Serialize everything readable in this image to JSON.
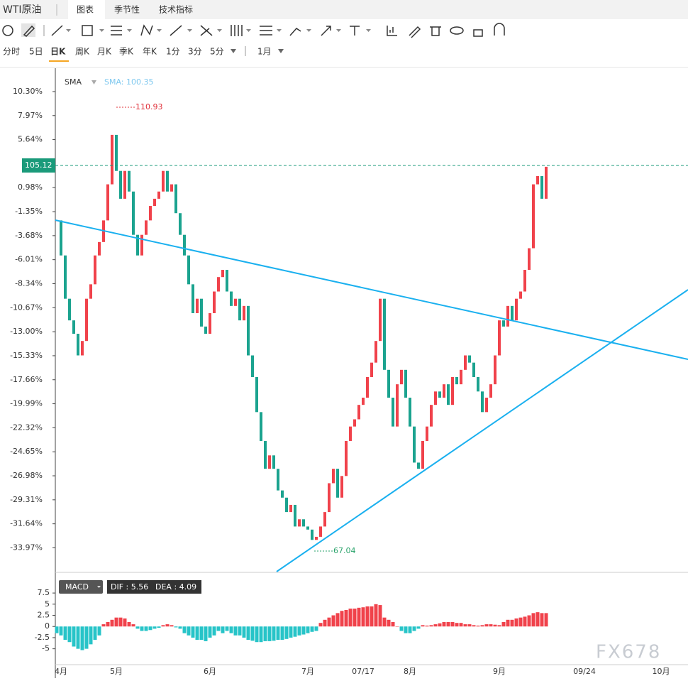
{
  "header": {
    "instrument": "WTI原油",
    "tabs": [
      "图表",
      "季节性",
      "技术指标"
    ]
  },
  "periods": [
    "分时",
    "5日",
    "日K",
    "周K",
    "月K",
    "季K",
    "年K",
    "1分",
    "3分",
    "5分",
    "1月"
  ],
  "watermark": "FX678",
  "chart_data": [
    {
      "type": "candlestick",
      "indicator": "SMA",
      "indicator_value": "SMA: 100.35",
      "last_price": "105.12",
      "max_label": "110.93",
      "min_label": "67.04",
      "categories": [
        null,
        "4月",
        null,
        null,
        null,
        null,
        null,
        null,
        null,
        null,
        null,
        null,
        null,
        null,
        "5月",
        null,
        null,
        null,
        null,
        null,
        null,
        null,
        null,
        null,
        null,
        null,
        null,
        null,
        null,
        null,
        null,
        null,
        null,
        null,
        null,
        null,
        "6月",
        null,
        null,
        null,
        null,
        null,
        null,
        null,
        null,
        null,
        null,
        null,
        null,
        null,
        null,
        null,
        null,
        null,
        null,
        null,
        null,
        null,
        null,
        "7月",
        null,
        null,
        null,
        null,
        null,
        null,
        null,
        null,
        null,
        null,
        null,
        null,
        "07/17",
        null,
        null,
        null,
        null,
        null,
        null,
        null,
        null,
        null,
        null,
        "8月",
        null,
        null,
        null,
        null,
        null,
        null,
        null,
        null,
        null,
        null,
        null,
        null,
        null,
        null,
        null,
        null,
        null,
        null,
        null,
        null,
        "9月",
        null,
        null,
        null,
        null,
        null,
        null,
        null,
        null,
        null,
        null,
        null,
        null,
        null,
        null,
        null,
        null,
        null,
        null,
        null,
        "09/24",
        null,
        null,
        null,
        null,
        null,
        null,
        null,
        null,
        null,
        null,
        null,
        null,
        null,
        null,
        null,
        null,
        null,
        "10月",
        null,
        null,
        null,
        null,
        null
      ],
      "values": [
        -2.2,
        -5.6,
        -9.8,
        -11.9,
        -13.2,
        -15.3,
        -13.9,
        -9.8,
        -8.4,
        -5.6,
        -4.3,
        -2.2,
        1.3,
        6.1,
        2.6,
        -0.1,
        2.6,
        0.6,
        -3.6,
        -5.6,
        -3.6,
        -2.2,
        -0.8,
        -0.1,
        0.6,
        2.6,
        0.6,
        1.3,
        -1.5,
        -3.6,
        -5.6,
        -8.4,
        -11.2,
        -9.8,
        -12.5,
        -13.2,
        -11.2,
        -9.1,
        -7.7,
        -7.0,
        -9.1,
        -10.5,
        -9.8,
        -11.9,
        -10.5,
        -15.3,
        -17.4,
        -20.8,
        -23.6,
        -26.3,
        -25.0,
        -26.3,
        -28.4,
        -29.1,
        -30.5,
        -29.8,
        -31.9,
        -31.2,
        -31.9,
        -32.2,
        -33.2,
        -32.9,
        -31.9,
        -30.5,
        -27.7,
        -26.3,
        -29.1,
        -27.0,
        -23.6,
        -22.2,
        -21.5,
        -20.1,
        -19.4,
        -17.4,
        -16.0,
        -13.9,
        -9.8,
        -16.7,
        -19.4,
        -22.2,
        -18.1,
        -16.7,
        -19.4,
        -22.2,
        -25.7,
        -26.3,
        -23.6,
        -22.2,
        -20.1,
        -18.8,
        -19.4,
        -18.1,
        -20.1,
        -17.4,
        -18.1,
        -16.7,
        -15.3,
        -16.0,
        -17.4,
        -18.8,
        -20.8,
        -19.4,
        -18.1,
        -15.3,
        -11.9,
        -12.5,
        -10.5,
        -11.9,
        -9.8,
        -9.1,
        -7.0,
        -4.9,
        1.3,
        2.1,
        -0.1,
        3.0,
        null,
        null,
        null,
        null,
        null,
        null,
        null,
        null,
        null,
        null,
        null,
        null,
        null,
        null,
        null,
        null,
        null,
        null,
        null,
        null,
        null,
        null,
        null,
        null,
        null,
        null,
        null,
        null,
        null,
        null,
        null,
        null
      ],
      "up_color": "#f0424b",
      "down_color": "#1ba38f",
      "ylim": [
        -36.28,
        12.57
      ],
      "yticks": [
        {
          "value": 10.3,
          "label": "10.30%"
        },
        {
          "value": 7.97,
          "label": "7.97%"
        },
        {
          "value": 5.64,
          "label": "5.64%"
        },
        {
          "value": 0.98,
          "label": "0.98%"
        },
        {
          "value": -1.35,
          "label": "-1.35%"
        },
        {
          "value": -3.68,
          "label": "-3.68%"
        },
        {
          "value": -6.01,
          "label": "-6.01%"
        },
        {
          "value": -8.34,
          "label": "-8.34%"
        },
        {
          "value": -10.67,
          "label": "-10.67%"
        },
        {
          "value": -13.0,
          "label": "-13.00%"
        },
        {
          "value": -15.33,
          "label": "-15.33%"
        },
        {
          "value": -17.66,
          "label": "-17.66%"
        },
        {
          "value": -19.99,
          "label": "-19.99%"
        },
        {
          "value": -22.32,
          "label": "-22.32%"
        },
        {
          "value": -24.65,
          "label": "-24.65%"
        },
        {
          "value": -26.98,
          "label": "-26.98%"
        },
        {
          "value": -29.31,
          "label": "-29.31%"
        },
        {
          "value": -31.64,
          "label": "-31.64%"
        },
        {
          "value": -33.97,
          "label": "-33.97%"
        }
      ]
    },
    {
      "type": "bar",
      "indicator": "MACD",
      "dif": "DIF : 5.56",
      "dea": "DEA : 4.09",
      "values": [
        -1.5,
        -2,
        -3,
        -3.5,
        -4.5,
        -5,
        -5.3,
        -5,
        -4,
        -3,
        -2,
        0.5,
        1,
        1.5,
        2,
        2,
        1.8,
        1,
        0.5,
        -0.5,
        -1,
        -1,
        -0.8,
        -0.5,
        -0.3,
        0.3,
        0.5,
        0.3,
        -0.2,
        -0.5,
        -1.5,
        -2,
        -2.5,
        -3,
        -3,
        -3.3,
        -2.5,
        -2,
        -1,
        -1.5,
        -1,
        -1.5,
        -2,
        -2,
        -2.5,
        -3,
        -3.2,
        -3.5,
        -3.5,
        -3.3,
        -3.3,
        -3.2,
        -3,
        -3,
        -2.8,
        -2.5,
        -2.3,
        -2,
        -1.8,
        -1.5,
        -1.2,
        -1,
        0.8,
        1.5,
        2,
        2.5,
        3,
        3.5,
        3.7,
        4,
        4,
        4.2,
        4.3,
        4.5,
        4.5,
        5,
        4.8,
        2,
        1.5,
        1,
        0,
        -1,
        -1.5,
        -1.5,
        -1,
        -0.5,
        0.3,
        0.2,
        0.3,
        0.5,
        0.7,
        1,
        1,
        1,
        0.8,
        0.8,
        0.5,
        0.5,
        0.3,
        0.2,
        0.3,
        0.5,
        0.5,
        0.4,
        0.3,
        1,
        1.5,
        1.5,
        1.8,
        2,
        2.2,
        2.5,
        3,
        3.2,
        3,
        3,
        null,
        null,
        null,
        null,
        null,
        null,
        null,
        null,
        null,
        null,
        null,
        null,
        null,
        null,
        null,
        null,
        null,
        null,
        null,
        null,
        null,
        null,
        null,
        null,
        null,
        null,
        null,
        null,
        null,
        null,
        null,
        null
      ],
      "up_color": "#f0424b",
      "down_color": "#27c4c8",
      "ylim": [
        -8.4,
        10.7
      ],
      "yticks": [
        7.5,
        5,
        2.5,
        0,
        -2.5,
        -5
      ]
    }
  ]
}
